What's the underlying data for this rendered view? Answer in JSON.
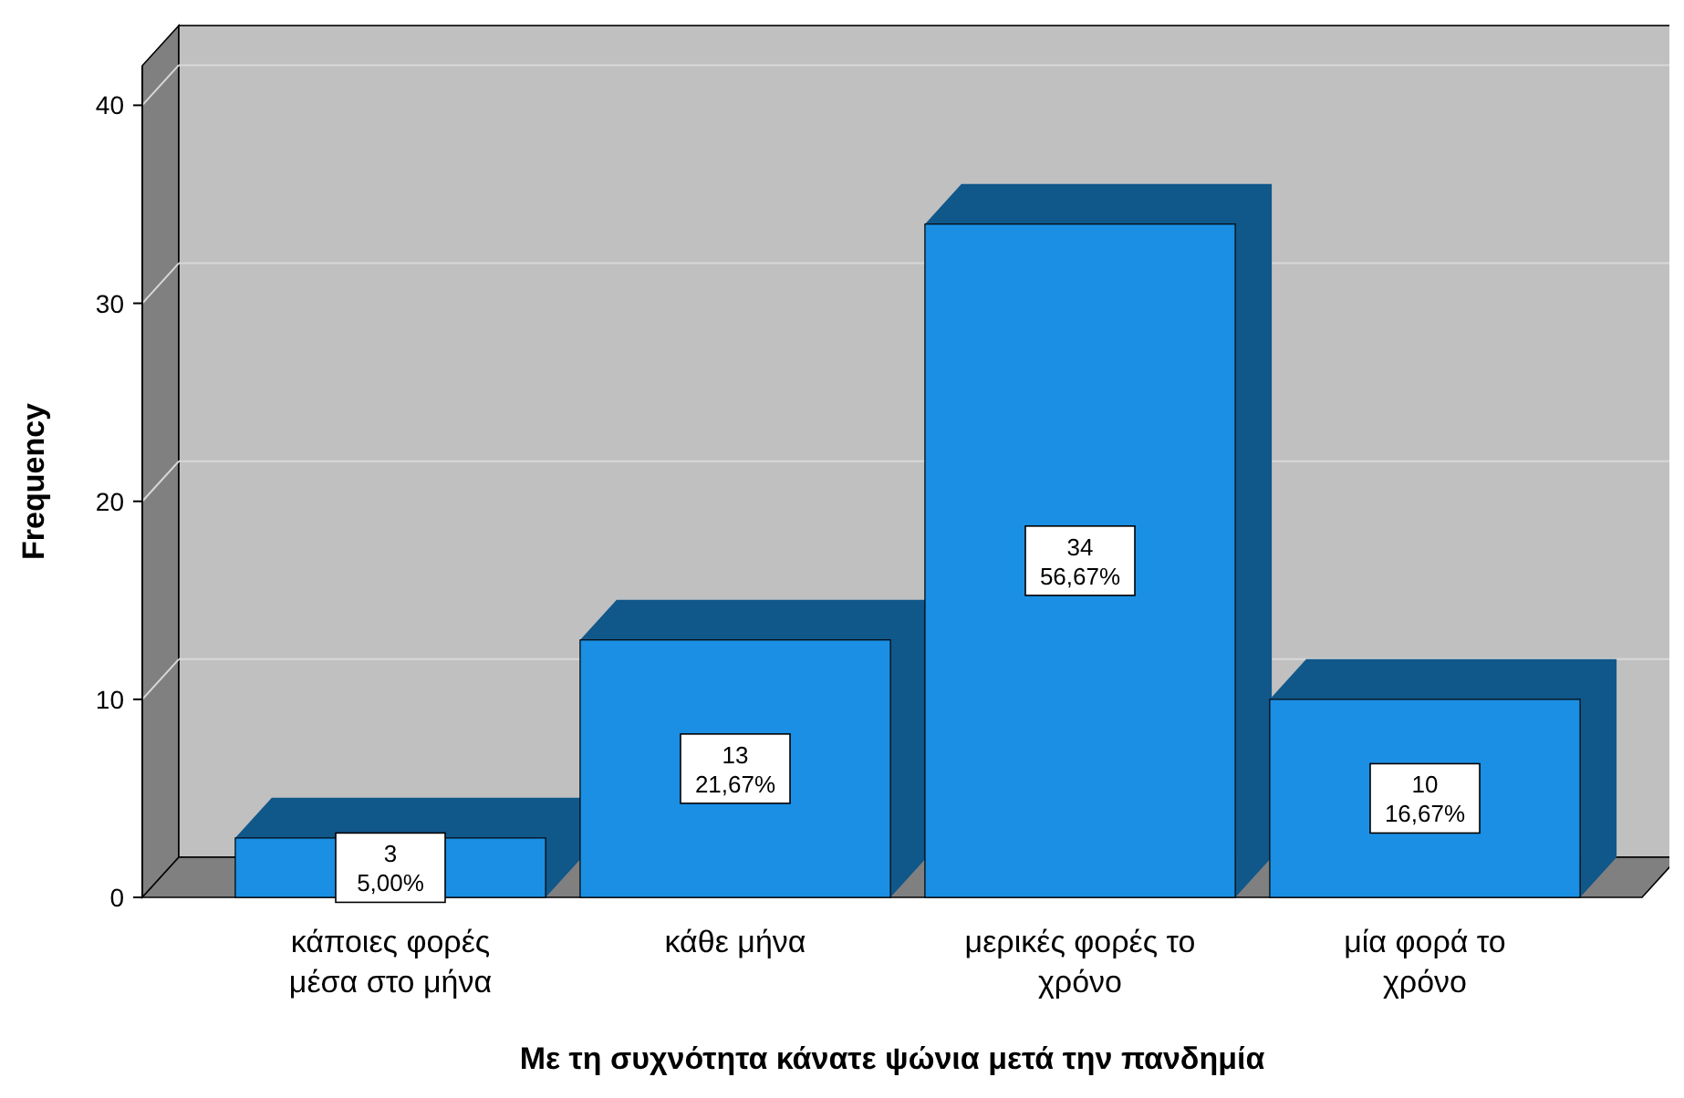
{
  "chart_data": {
    "type": "bar",
    "xlabel": "Με τη συχνότητα κάνατε ψώνια μετά την πανδημία",
    "ylabel": "Frequency",
    "categories": [
      "κάποιες φορές μέσα στο μήνα",
      "κάθε μήνα",
      "μερικές φορές το χρόνο",
      "μία φορά το χρόνο"
    ],
    "values": [
      3,
      13,
      34,
      10
    ],
    "color": "#1a8fe3",
    "value_labels": [
      "3\n5,00%",
      "13\n21,67%",
      "34\n56,67%",
      "10\n16,67%"
    ],
    "ylim": [
      0,
      42
    ],
    "yticks": [
      0,
      10,
      20,
      30,
      40
    ],
    "grid": "y"
  }
}
